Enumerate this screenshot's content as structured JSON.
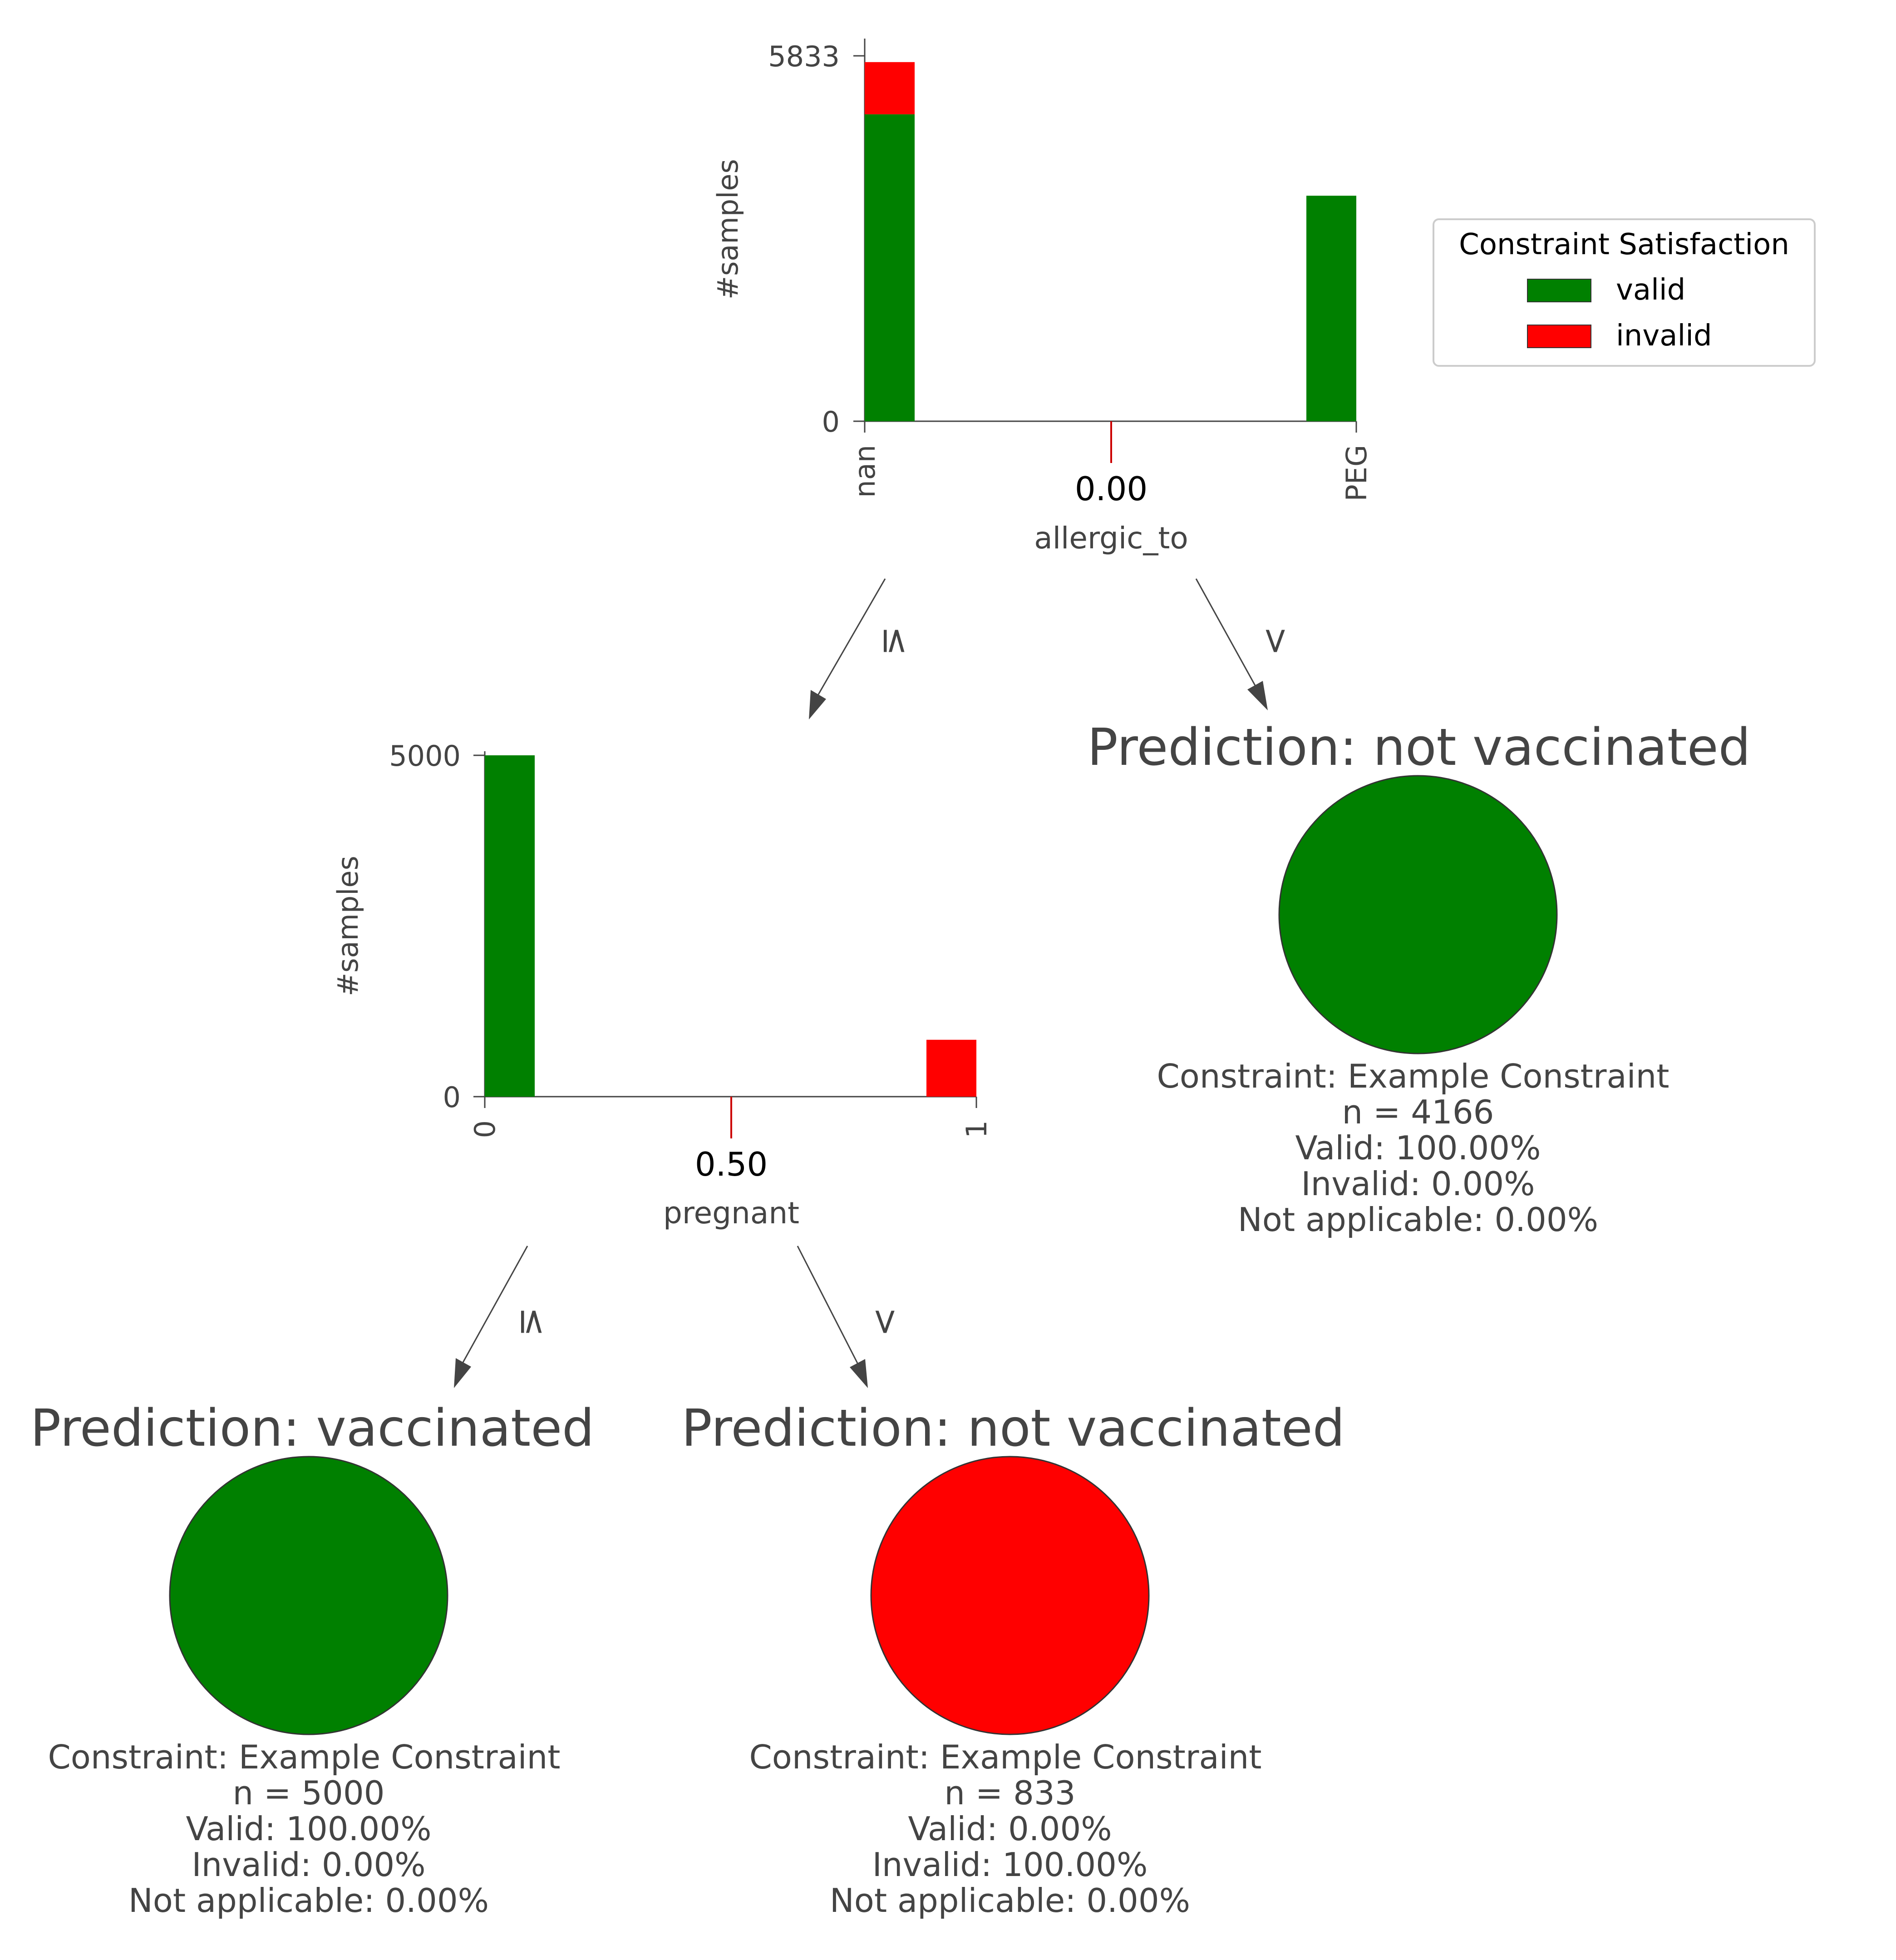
{
  "colors": {
    "valid": "#008000",
    "invalid": "#ff0000",
    "text": "#444444",
    "axis": "#444444",
    "threshold": "#cc0000"
  },
  "legend": {
    "title": "Constraint Satisfaction",
    "items": [
      {
        "label": "valid",
        "color": "#008000"
      },
      {
        "label": "invalid",
        "color": "#ff0000"
      }
    ]
  },
  "chart_data": [
    {
      "type": "bar",
      "node": "root",
      "feature": "allergic_to",
      "categories": [
        "nan",
        "PEG"
      ],
      "series": [
        {
          "name": "valid",
          "values": [
            4900,
            3600
          ]
        },
        {
          "name": "invalid",
          "values": [
            833,
            0
          ]
        }
      ],
      "ylabel": "#samples",
      "yticks": [
        "5833",
        "0"
      ],
      "ylim": [
        0,
        5833
      ],
      "threshold": "0.00"
    },
    {
      "type": "bar",
      "node": "left-child",
      "feature": "pregnant",
      "categories": [
        "0",
        "1"
      ],
      "series": [
        {
          "name": "valid",
          "values": [
            5000,
            0
          ]
        },
        {
          "name": "invalid",
          "values": [
            0,
            833
          ]
        }
      ],
      "ylabel": "#samples",
      "yticks": [
        "5000",
        "0"
      ],
      "ylim": [
        0,
        5000
      ],
      "threshold": "0.50"
    }
  ],
  "edges": [
    {
      "from": "allergic_to",
      "to": "pregnant",
      "label": "≤"
    },
    {
      "from": "allergic_to",
      "to": "leaf-1",
      "label": ">"
    },
    {
      "from": "pregnant",
      "to": "leaf-2",
      "label": "≤"
    },
    {
      "from": "pregnant",
      "to": "leaf-3",
      "label": ">"
    }
  ],
  "leaves": [
    {
      "prediction": "Prediction: not vaccinated",
      "circle_color": "#008000",
      "constraint": "Constraint: Example Constraint",
      "n": "n = 4166",
      "valid": "Valid: 100.00%",
      "invalid": "Invalid: 0.00%",
      "na": "Not applicable: 0.00%"
    },
    {
      "prediction": "Prediction: vaccinated",
      "circle_color": "#008000",
      "constraint": "Constraint: Example Constraint",
      "n": "n = 5000",
      "valid": "Valid: 100.00%",
      "invalid": "Invalid: 0.00%",
      "na": "Not applicable: 0.00%"
    },
    {
      "prediction": "Prediction: not vaccinated",
      "circle_color": "#ff0000",
      "constraint": "Constraint: Example Constraint",
      "n": "n = 833",
      "valid": "Valid: 0.00%",
      "invalid": "Invalid: 100.00%",
      "na": "Not applicable: 0.00%"
    }
  ]
}
